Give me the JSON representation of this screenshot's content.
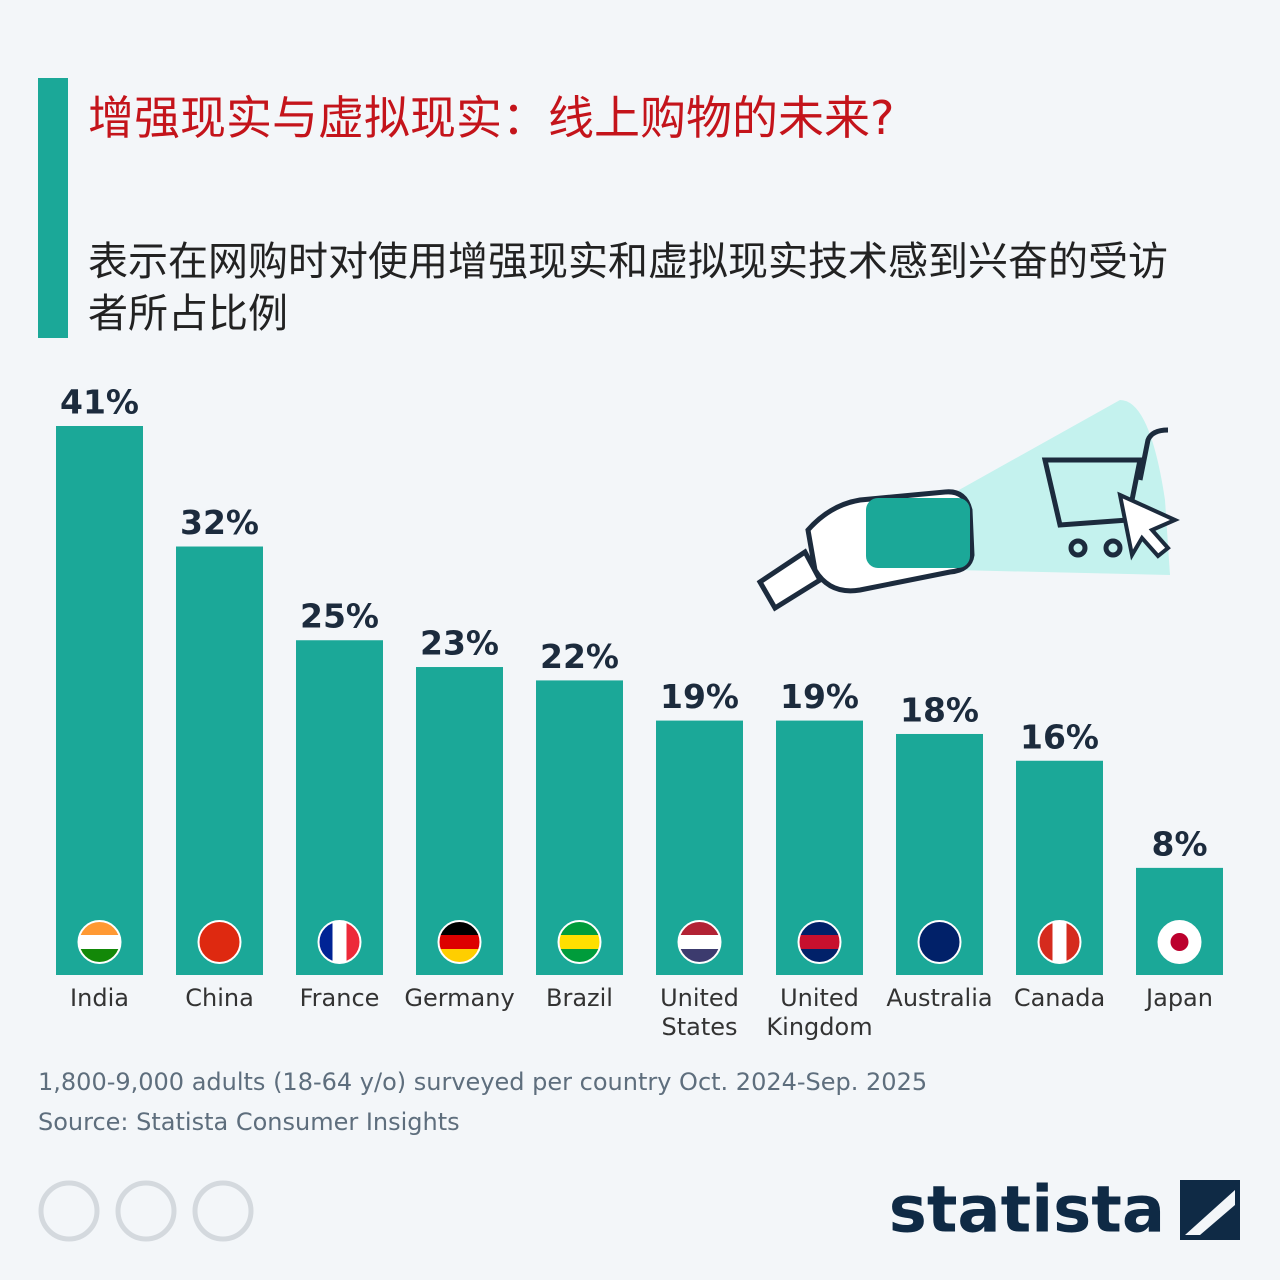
{
  "chart_data": {
    "type": "bar",
    "title": "增强现实与虚拟现实：线上购物的未来?",
    "subtitle": "表示在网购时对使用增强现实和虚拟现实技术感到兴奋的受访者所占比例",
    "categories": [
      "India",
      "China",
      "France",
      "Germany",
      "Brazil",
      "United States",
      "United Kingdom",
      "Australia",
      "Canada",
      "Japan"
    ],
    "values": [
      41,
      32,
      25,
      23,
      22,
      19,
      19,
      18,
      16,
      8
    ],
    "value_labels": [
      "41%",
      "32%",
      "25%",
      "23%",
      "22%",
      "19%",
      "19%",
      "18%",
      "16%",
      "8%"
    ],
    "color": "#1ba898",
    "note": "1,800-9,000 adults (18-64 y/o) surveyed per country Oct. 2024-Sep. 2025",
    "source": "Source: Statista Consumer Insights",
    "brand": "statista"
  }
}
